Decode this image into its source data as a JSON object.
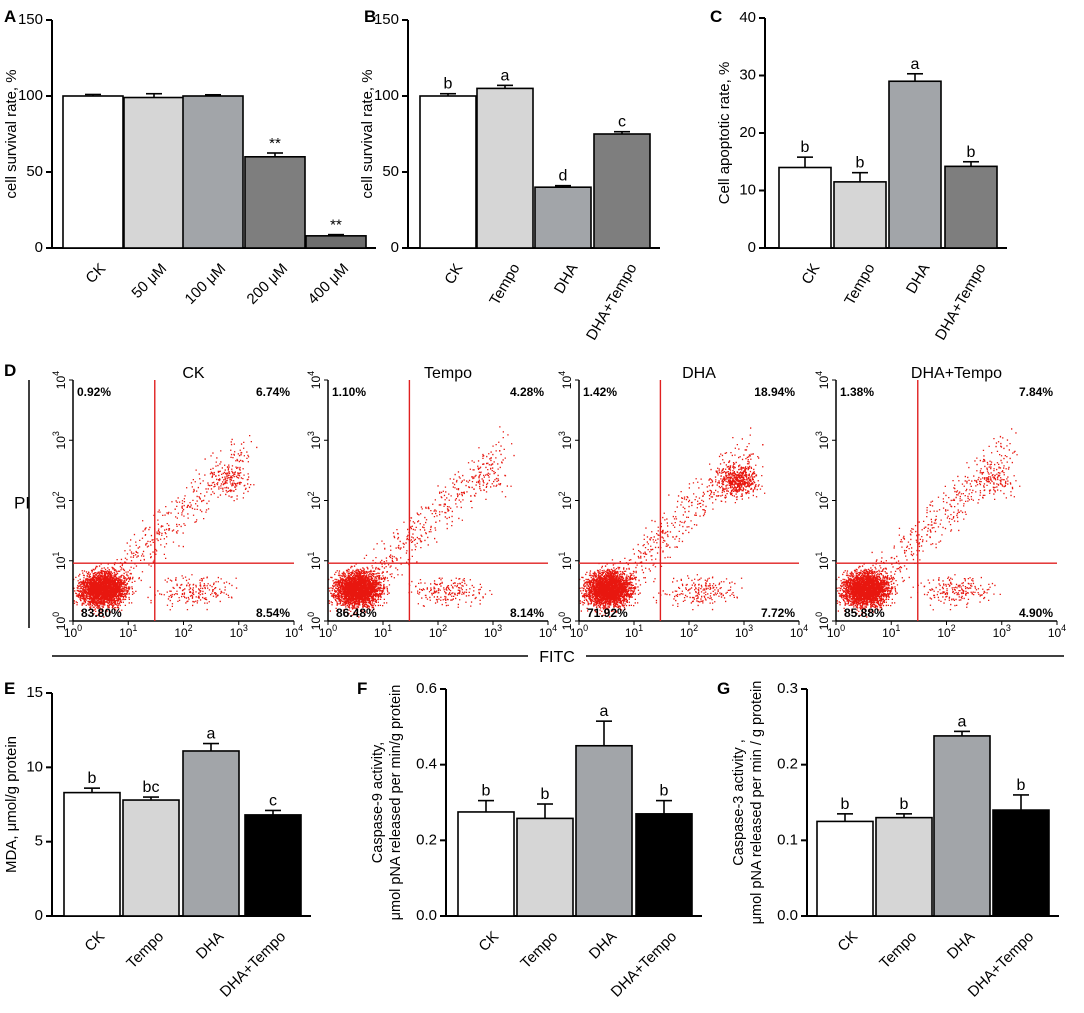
{
  "chart_data": [
    {
      "panel": "A",
      "type": "bar",
      "categories": [
        "CK",
        "50 μM",
        "100 μM",
        "200 μM",
        "400 μM"
      ],
      "values": [
        100,
        99,
        100,
        60,
        8
      ],
      "errors": [
        1,
        2.5,
        0.8,
        2.5,
        0.8
      ],
      "annotations": [
        "",
        "",
        "",
        "**",
        "**"
      ],
      "colors": [
        "#ffffff",
        "#d6d6d6",
        "#a2a5a9",
        "#7e7e7e",
        "#6e6e6e"
      ],
      "ylabel": "cell survival rate, %",
      "ylim": [
        0,
        150
      ],
      "yticks": [
        0,
        50,
        100,
        150
      ]
    },
    {
      "panel": "B",
      "type": "bar",
      "categories": [
        "CK",
        "Tempo",
        "DHA",
        "DHA+Tempo"
      ],
      "values": [
        100,
        105,
        40,
        75
      ],
      "errors": [
        1.5,
        2,
        1,
        1.5
      ],
      "annotations": [
        "b",
        "a",
        "d",
        "c"
      ],
      "colors": [
        "#ffffff",
        "#d6d6d6",
        "#a2a5a9",
        "#7e7e7e"
      ],
      "ylabel": "cell survival rate, %",
      "ylim": [
        0,
        150
      ],
      "yticks": [
        0,
        50,
        100,
        150
      ]
    },
    {
      "panel": "C",
      "type": "bar",
      "categories": [
        "CK",
        "Tempo",
        "DHA",
        "DHA+Tempo"
      ],
      "values": [
        14,
        11.5,
        29,
        14.2
      ],
      "errors": [
        1.8,
        1.6,
        1.3,
        0.8
      ],
      "annotations": [
        "b",
        "b",
        "a",
        "b"
      ],
      "colors": [
        "#ffffff",
        "#d6d6d6",
        "#a2a5a9",
        "#7e7e7e"
      ],
      "ylabel": "Cell apoptotic rate, %",
      "ylim": [
        0,
        40
      ],
      "yticks": [
        0,
        10,
        20,
        30,
        40
      ]
    },
    {
      "panel": "D",
      "type": "scatter",
      "xlabel": "FITC",
      "ylabel": "PI",
      "axis_labels": [
        "10",
        "10",
        "10",
        "10",
        "10"
      ],
      "axis_exponents": [
        "0",
        "1",
        "2",
        "3",
        "4"
      ],
      "plots": [
        {
          "title": "CK",
          "quadrants": [
            "0.92%",
            "6.74%",
            "83.80%",
            "8.54%"
          ]
        },
        {
          "title": "Tempo",
          "quadrants": [
            "1.10%",
            "4.28%",
            "86.48%",
            "8.14%"
          ]
        },
        {
          "title": "DHA",
          "quadrants": [
            "1.42%",
            "18.94%",
            "71.92%",
            "7.72%"
          ]
        },
        {
          "title": "DHA+Tempo",
          "quadrants": [
            "1.38%",
            "7.84%",
            "85.88%",
            "4.90%"
          ]
        }
      ]
    },
    {
      "panel": "E",
      "type": "bar",
      "categories": [
        "CK",
        "Tempo",
        "DHA",
        "DHA+Tempo"
      ],
      "values": [
        8.3,
        7.8,
        11.1,
        6.8
      ],
      "errors": [
        0.3,
        0.2,
        0.5,
        0.3
      ],
      "annotations": [
        "b",
        "bc",
        "a",
        "c"
      ],
      "colors": [
        "#ffffff",
        "#d6d6d6",
        "#a2a5a9",
        "#000000"
      ],
      "ylabel": "MDA, μmol/g protein",
      "ylim": [
        0,
        15
      ],
      "yticks": [
        0,
        5,
        10,
        15
      ]
    },
    {
      "panel": "F",
      "type": "bar",
      "categories": [
        "CK",
        "Tempo",
        "DHA",
        "DHA+Tempo"
      ],
      "values": [
        0.275,
        0.258,
        0.45,
        0.27
      ],
      "errors": [
        0.03,
        0.038,
        0.065,
        0.035
      ],
      "annotations": [
        "b",
        "b",
        "a",
        "b"
      ],
      "colors": [
        "#ffffff",
        "#d6d6d6",
        "#a2a5a9",
        "#000000"
      ],
      "ylabel": "Caspase-9 activity,",
      "ylabel2": "μmol pNA released per  min/g protein",
      "ylim": [
        0,
        0.6
      ],
      "yticks": [
        0.0,
        0.2,
        0.4,
        0.6
      ]
    },
    {
      "panel": "G",
      "type": "bar",
      "categories": [
        "CK",
        "Tempo",
        "DHA",
        "DHA+Tempo"
      ],
      "values": [
        0.125,
        0.13,
        0.238,
        0.14
      ],
      "errors": [
        0.01,
        0.005,
        0.006,
        0.02
      ],
      "annotations": [
        "b",
        "b",
        "a",
        "b"
      ],
      "colors": [
        "#ffffff",
        "#d6d6d6",
        "#a2a5a9",
        "#000000"
      ],
      "ylabel": "Caspase-3 activity ,",
      "ylabel2": "μmol pNA released per min / g protein",
      "ylim": [
        0,
        0.3
      ],
      "yticks": [
        0.0,
        0.1,
        0.2,
        0.3
      ]
    }
  ]
}
